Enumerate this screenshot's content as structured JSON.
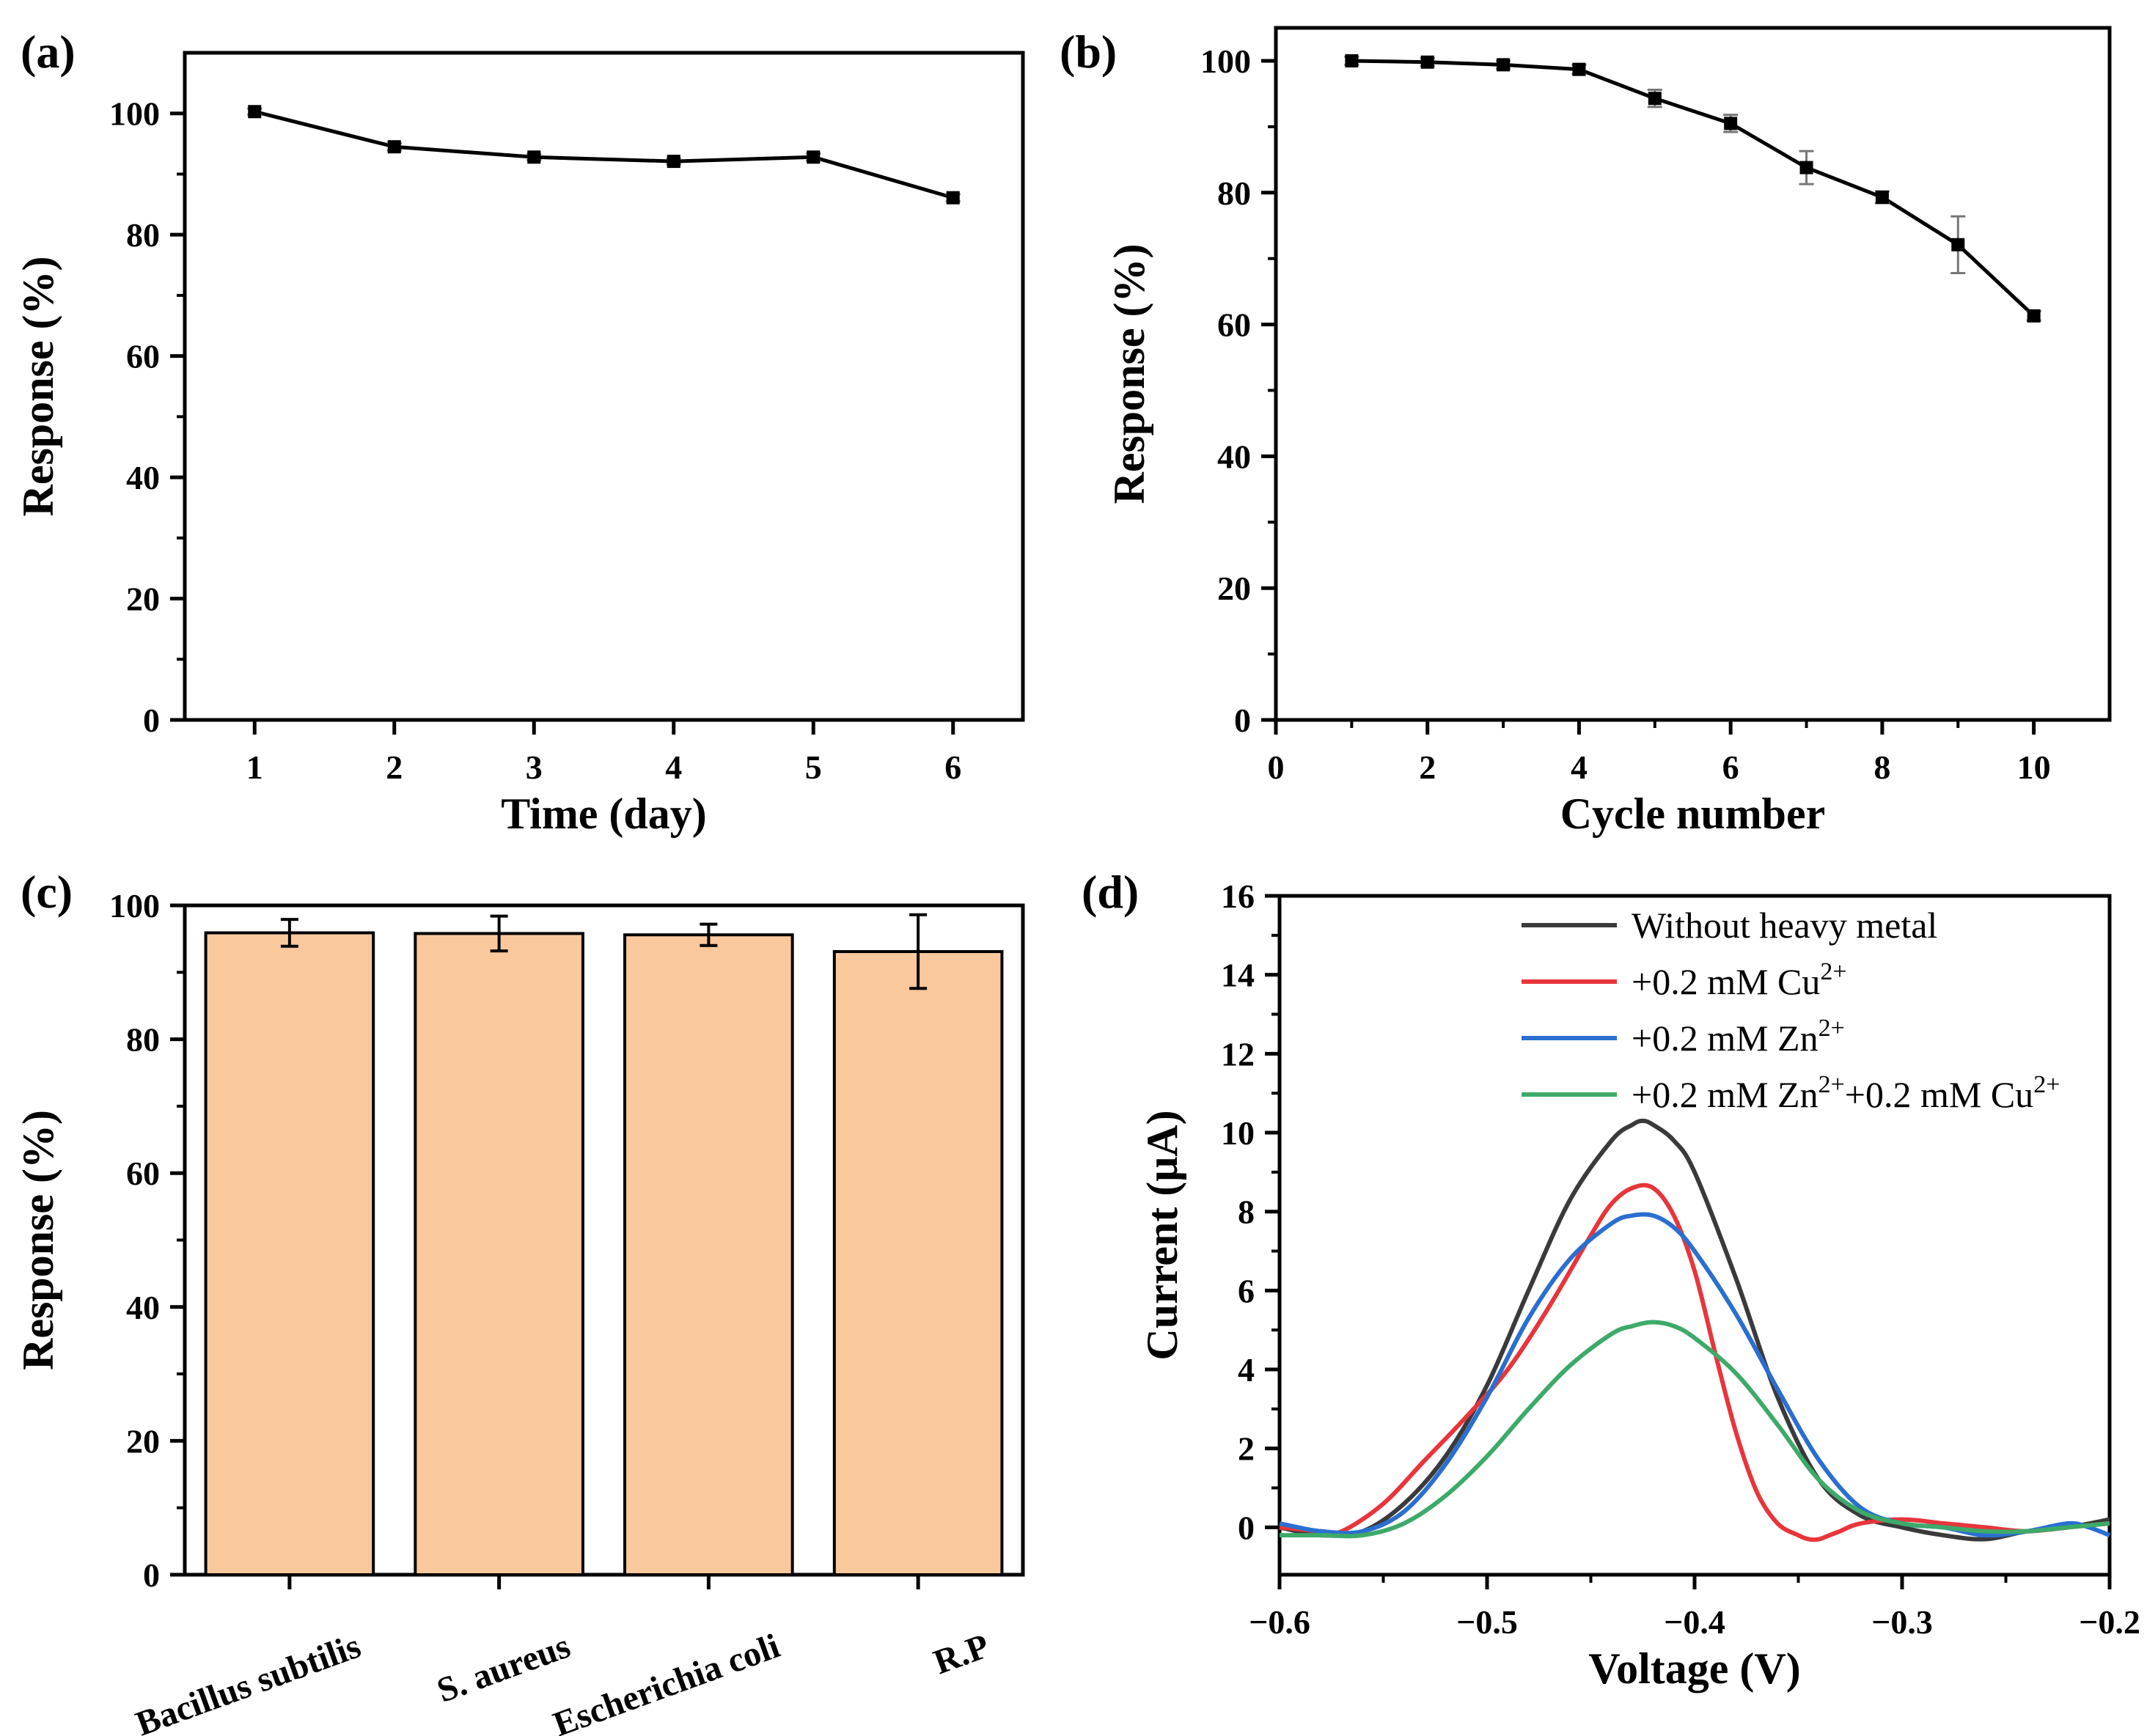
{
  "chart_data": [
    {
      "id": "a",
      "panel_label": "(a)",
      "type": "line",
      "x": [
        1,
        2,
        3,
        4,
        5,
        6
      ],
      "series": [
        {
          "name": "Response",
          "values": [
            100.3,
            94.5,
            92.8,
            92.1,
            92.8,
            86.1
          ]
        }
      ],
      "error": [
        0.5,
        0.6,
        0.5,
        0.5,
        0.6,
        0.6
      ],
      "xlabel": "Time (day)",
      "ylabel": "Response (%)",
      "xlim": [
        0.5,
        6.5
      ],
      "ylim": [
        0,
        110
      ],
      "xticks": [
        1,
        2,
        3,
        4,
        5,
        6
      ],
      "yticks": [
        0,
        20,
        40,
        60,
        80,
        100
      ],
      "color": "#000000"
    },
    {
      "id": "b",
      "panel_label": "(b)",
      "type": "line",
      "x": [
        1,
        2,
        3,
        4,
        5,
        6,
        7,
        8,
        9,
        10
      ],
      "series": [
        {
          "name": "Response",
          "values": [
            100.0,
            99.8,
            99.4,
            98.7,
            94.3,
            90.5,
            83.8,
            79.3,
            72.1,
            61.3
          ]
        }
      ],
      "error": [
        0.6,
        0.6,
        0.6,
        0.7,
        1.3,
        1.3,
        2.5,
        0.9,
        4.3,
        0.7
      ],
      "xlabel": "Cycle number",
      "ylabel": "Response (%)",
      "xlim": [
        0,
        11
      ],
      "ylim": [
        0,
        105
      ],
      "xticks": [
        0,
        2,
        4,
        6,
        8,
        10
      ],
      "yticks": [
        0,
        20,
        40,
        60,
        80,
        100
      ],
      "color": "#000000"
    },
    {
      "id": "c",
      "panel_label": "(c)",
      "type": "bar",
      "categories": [
        "Bacillus subtilis",
        "S. aureus",
        "Escherichia coli",
        "R.P"
      ],
      "values": [
        95.9,
        95.8,
        95.6,
        93.1
      ],
      "error": [
        2.0,
        2.6,
        1.6,
        5.5
      ],
      "xlabel": "",
      "ylabel": "Response (%)",
      "ylim": [
        0,
        100
      ],
      "yticks": [
        0,
        20,
        40,
        60,
        80,
        100
      ],
      "bar_color": "#F9C89C"
    },
    {
      "id": "d",
      "panel_label": "(d)",
      "type": "line",
      "xlabel": "Voltage (V)",
      "ylabel": "Current (μA)",
      "xlim": [
        -0.6,
        -0.2
      ],
      "ylim": [
        -1.2,
        16
      ],
      "xticks": [
        -0.6,
        -0.5,
        -0.4,
        -0.3,
        -0.2
      ],
      "xtick_labels": [
        "−0.6",
        "−0.5",
        "−0.4",
        "−0.3",
        "−0.2"
      ],
      "yticks": [
        0,
        2,
        4,
        6,
        8,
        10,
        12,
        14,
        16
      ],
      "legend_position": "top-right",
      "series": [
        {
          "name": "Without heavy metal",
          "legend_main": "Without heavy metal",
          "legend_sup": "",
          "legend_main2": "",
          "legend_sup2": "",
          "color": "#3A3A3A",
          "x": [
            -0.6,
            -0.58,
            -0.56,
            -0.54,
            -0.52,
            -0.5,
            -0.48,
            -0.46,
            -0.44,
            -0.43,
            -0.425,
            -0.42,
            -0.41,
            -0.4,
            -0.38,
            -0.36,
            -0.34,
            -0.32,
            -0.3,
            -0.28,
            -0.26,
            -0.24,
            -0.22,
            -0.2
          ],
          "values": [
            0,
            -0.2,
            -0.1,
            0.6,
            1.8,
            3.6,
            6.0,
            8.3,
            9.8,
            10.2,
            10.3,
            10.2,
            9.8,
            9.0,
            6.3,
            3.3,
            1.2,
            0.3,
            0.0,
            -0.2,
            -0.3,
            -0.1,
            0.0,
            0.2
          ]
        },
        {
          "name": "+0.2 mM Cu2+",
          "legend_main": "+0.2 mM Cu",
          "legend_sup": "2+",
          "legend_main2": "",
          "legend_sup2": "",
          "color": "#E8353B",
          "x": [
            -0.6,
            -0.58,
            -0.57,
            -0.55,
            -0.53,
            -0.51,
            -0.49,
            -0.47,
            -0.45,
            -0.44,
            -0.43,
            -0.42,
            -0.41,
            -0.4,
            -0.39,
            -0.38,
            -0.37,
            -0.36,
            -0.35,
            -0.345,
            -0.34,
            -0.335,
            -0.33,
            -0.32,
            -0.3,
            -0.28,
            -0.26,
            -0.24,
            -0.22,
            -0.2
          ],
          "values": [
            0,
            -0.1,
            -0.1,
            0.6,
            1.7,
            2.8,
            4.0,
            5.6,
            7.4,
            8.2,
            8.6,
            8.6,
            7.9,
            6.5,
            4.4,
            2.4,
            0.9,
            0.1,
            -0.2,
            -0.3,
            -0.3,
            -0.2,
            -0.1,
            0.1,
            0.2,
            0.1,
            0.0,
            -0.1,
            0.0,
            0.1
          ]
        },
        {
          "name": "+0.2 mM Zn2+",
          "legend_main": "+0.2 mM Zn",
          "legend_sup": "2+",
          "legend_main2": "",
          "legend_sup2": "",
          "color": "#2A6FD0",
          "x": [
            -0.6,
            -0.58,
            -0.56,
            -0.54,
            -0.52,
            -0.5,
            -0.48,
            -0.46,
            -0.44,
            -0.43,
            -0.42,
            -0.41,
            -0.4,
            -0.38,
            -0.36,
            -0.34,
            -0.32,
            -0.3,
            -0.28,
            -0.26,
            -0.24,
            -0.22,
            -0.21,
            -0.2
          ],
          "values": [
            0.1,
            -0.1,
            -0.1,
            0.4,
            1.6,
            3.3,
            5.3,
            6.8,
            7.7,
            7.9,
            7.9,
            7.6,
            7.0,
            5.4,
            3.5,
            1.7,
            0.5,
            0.1,
            0.0,
            -0.2,
            -0.1,
            0.1,
            0.0,
            -0.2
          ]
        },
        {
          "name": "+0.2 mM Zn2++0.2 mM Cu2+",
          "legend_main": "+0.2 mM Zn",
          "legend_sup": "2+",
          "legend_main2": "+0.2 mM Cu",
          "legend_sup2": "2+",
          "color": "#3DAA6A",
          "x": [
            -0.6,
            -0.58,
            -0.56,
            -0.54,
            -0.52,
            -0.5,
            -0.48,
            -0.46,
            -0.44,
            -0.43,
            -0.42,
            -0.41,
            -0.4,
            -0.38,
            -0.36,
            -0.34,
            -0.32,
            -0.3,
            -0.28,
            -0.26,
            -0.24,
            -0.22,
            -0.2
          ],
          "values": [
            -0.2,
            -0.2,
            -0.2,
            0.1,
            0.8,
            1.8,
            3.0,
            4.1,
            4.9,
            5.1,
            5.2,
            5.1,
            4.8,
            3.9,
            2.6,
            1.2,
            0.4,
            0.1,
            0.0,
            -0.1,
            -0.1,
            0.0,
            0.1
          ]
        }
      ]
    }
  ]
}
